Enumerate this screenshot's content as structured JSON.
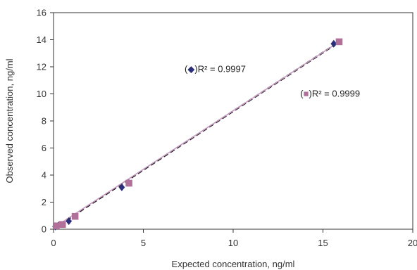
{
  "chart_data": {
    "type": "scatter",
    "xlabel": "Expected concentration, ng/ml",
    "ylabel": "Observed concentration, ng/ml",
    "xlim": [
      0,
      20
    ],
    "ylim": [
      0,
      16
    ],
    "xticks": [
      0,
      5,
      10,
      15,
      20
    ],
    "yticks": [
      0,
      2,
      4,
      6,
      8,
      10,
      12,
      14,
      16
    ],
    "grid": false,
    "series": [
      {
        "marker": "diamond",
        "color": "#2b2f7a",
        "x": [
          0.1,
          0.3,
          0.85,
          3.8,
          15.6
        ],
        "y": [
          0.2,
          0.3,
          0.6,
          3.1,
          13.7
        ],
        "trendline": {
          "style": "dashed",
          "color": "#111111",
          "from": [
            0,
            0.05
          ],
          "to": [
            15.8,
            13.75
          ]
        },
        "annotation": {
          "prefix": "(",
          "suffix": ")R² = 0.9997",
          "at": [
            9.0,
            11.6
          ]
        }
      },
      {
        "marker": "square",
        "color": "#b0709a",
        "x": [
          0.15,
          0.5,
          1.2,
          4.2,
          15.9
        ],
        "y": [
          0.25,
          0.35,
          0.95,
          3.4,
          13.85
        ],
        "trendline": {
          "style": "solid",
          "color": "#c59ac0",
          "from": [
            0,
            0.1
          ],
          "to": [
            15.9,
            13.85
          ]
        },
        "annotation": {
          "prefix": "(",
          "suffix": ")R² = 0.9999",
          "at": [
            15.4,
            9.8
          ]
        }
      }
    ]
  }
}
